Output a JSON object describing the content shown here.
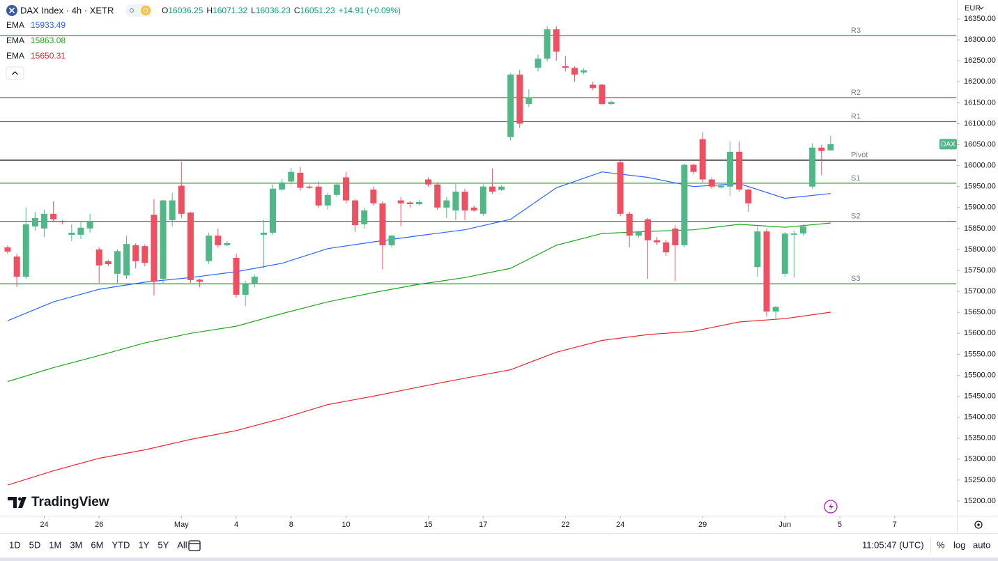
{
  "chart_data": {
    "type": "candlestick",
    "title": "DAX Index · 4h · XETR",
    "badge": "D",
    "ohlc_labels": [
      "O",
      "H",
      "L",
      "C"
    ],
    "change": "+14.91 (+0.09%)",
    "up_color": "#4fb886",
    "down_color": "#ef5061",
    "x": [
      0,
      1,
      2,
      3,
      4,
      5,
      6,
      7,
      8,
      9,
      10,
      11,
      12,
      13,
      14,
      15,
      16,
      17,
      18,
      19,
      20,
      21,
      22,
      23,
      24,
      25,
      26,
      27,
      28,
      29,
      30,
      31,
      32,
      33,
      34,
      35,
      36,
      37,
      38,
      39,
      40,
      41,
      42,
      43,
      44,
      45,
      46,
      47,
      48,
      49,
      50,
      51,
      52,
      53,
      54,
      55,
      56,
      57,
      58,
      59,
      60,
      61,
      62,
      63,
      64,
      65,
      66,
      67,
      68,
      69,
      70,
      71,
      72,
      73,
      74,
      75,
      76,
      77,
      78,
      79,
      80,
      81,
      82,
      83,
      84,
      85,
      86,
      87,
      88,
      89,
      90
    ],
    "open": [
      15805,
      15783,
      15735,
      15855,
      15850,
      15885,
      15868,
      15835,
      15835,
      15850,
      15800,
      15772,
      15742,
      15738,
      15810,
      15808,
      15883,
      15730,
      15870,
      15952,
      15888,
      15728,
      15772,
      15833,
      15810,
      15780,
      15692,
      15717,
      15835,
      15840,
      15943,
      15962,
      15983,
      15950,
      15950,
      15905,
      15930,
      15972,
      15917,
      15860,
      15943,
      15910,
      15810,
      15917,
      15912,
      15908,
      15967,
      15955,
      15900,
      15893,
      15938,
      15900,
      15885,
      15950,
      15942,
      16068,
      16217,
      16147,
      16233,
      16255,
      16325,
      16237,
      16233,
      16222,
      16193,
      16193,
      16147,
      16008,
      15885,
      15833,
      15872,
      15822,
      15817,
      15850,
      15810,
      16002,
      16063,
      15967,
      15948,
      15950,
      16033,
      15943,
      15758,
      15843,
      15652,
      15742,
      15835,
      15838,
      15950,
      16043,
      16036.25
    ],
    "high": [
      15810,
      15790,
      15900,
      15890,
      15895,
      15915,
      15870,
      15860,
      15865,
      15885,
      15805,
      15775,
      15800,
      15833,
      15815,
      15812,
      15920,
      15918,
      15935,
      16010,
      15890,
      15730,
      15840,
      15850,
      15820,
      15790,
      15725,
      15740,
      15870,
      15955,
      15968,
      15995,
      15997,
      15955,
      15962,
      15935,
      15960,
      15985,
      15920,
      15900,
      15950,
      15915,
      15835,
      15925,
      15915,
      15918,
      15972,
      15960,
      15925,
      15958,
      15945,
      15905,
      15955,
      15993,
      15953,
      16220,
      16228,
      16182,
      16265,
      16333,
      16333,
      16262,
      16237,
      16232,
      16200,
      16195,
      16155,
      16012,
      15890,
      15845,
      15875,
      15830,
      15823,
      15858,
      16005,
      16005,
      16080,
      15972,
      15955,
      16058,
      16058,
      15945,
      15855,
      15850,
      15665,
      15842,
      15845,
      15860,
      16053,
      16050,
      16071.32
    ],
    "low": [
      15790,
      15710,
      15730,
      15845,
      15830,
      15865,
      15860,
      15820,
      15825,
      15840,
      15720,
      15760,
      15720,
      15730,
      15755,
      15760,
      15690,
      15720,
      15855,
      15875,
      15720,
      15710,
      15765,
      15805,
      15808,
      15685,
      15665,
      15710,
      15755,
      15835,
      15940,
      15955,
      15940,
      15945,
      15900,
      15895,
      15925,
      15910,
      15842,
      15850,
      15905,
      15752,
      15805,
      15855,
      15900,
      15905,
      15950,
      15895,
      15875,
      15870,
      15870,
      15890,
      15880,
      15933,
      15940,
      16060,
      16090,
      16140,
      16225,
      16248,
      16250,
      16225,
      16200,
      16218,
      16180,
      16145,
      16145,
      15880,
      15805,
      15828,
      15730,
      15810,
      15785,
      15725,
      15805,
      15980,
      15960,
      15945,
      15945,
      15928,
      15938,
      15890,
      15735,
      15640,
      15635,
      15735,
      15733,
      15833,
      15945,
      15977,
      16036.23
    ],
    "close": [
      15795,
      15735,
      15860,
      15875,
      15885,
      15872,
      15865,
      15840,
      15852,
      15868,
      15762,
      15765,
      15796,
      15813,
      15772,
      15768,
      15725,
      15917,
      15917,
      15885,
      15727,
      15723,
      15833,
      15810,
      15815,
      15692,
      15717,
      15735,
      15840,
      15945,
      15960,
      15985,
      15947,
      15947,
      15905,
      15930,
      15955,
      15917,
      15858,
      15893,
      15910,
      15810,
      15833,
      15910,
      15908,
      15913,
      15955,
      15900,
      15917,
      15938,
      15893,
      15893,
      15950,
      15938,
      15950,
      16217,
      16100,
      16163,
      16255,
      16325,
      16272,
      16233,
      16217,
      16227,
      16185,
      16147,
      16152,
      15885,
      15833,
      15842,
      15822,
      15817,
      15793,
      15810,
      16002,
      15985,
      15967,
      15950,
      15952,
      16033,
      15943,
      15910,
      15843,
      15652,
      15663,
      15838,
      15838,
      15855,
      16043,
      16035,
      16051.23
    ],
    "series": [
      {
        "name": "EMA",
        "color": "#2962ff",
        "x": [
          0,
          5,
          10,
          15,
          20,
          25,
          30,
          35,
          40,
          45,
          50,
          55,
          60,
          65,
          70,
          75,
          80,
          85,
          90
        ],
        "values": [
          15630,
          15675,
          15705,
          15722,
          15733,
          15747,
          15767,
          15802,
          15818,
          15833,
          15847,
          15872,
          15947,
          15985,
          15972,
          15950,
          15957,
          15922,
          15933.49
        ]
      },
      {
        "name": "EMA",
        "color": "#1fa51f",
        "x": [
          0,
          5,
          10,
          15,
          20,
          25,
          30,
          35,
          40,
          45,
          50,
          55,
          60,
          65,
          70,
          75,
          80,
          85,
          90
        ],
        "values": [
          15485,
          15518,
          15547,
          15577,
          15600,
          15617,
          15647,
          15675,
          15697,
          15717,
          15733,
          15755,
          15810,
          15838,
          15843,
          15847,
          15860,
          15853,
          15863.08
        ]
      },
      {
        "name": "EMA",
        "color": "#e8262f",
        "x": [
          0,
          5,
          10,
          15,
          20,
          25,
          30,
          35,
          40,
          45,
          50,
          55,
          60,
          65,
          70,
          75,
          80,
          85,
          90
        ],
        "values": [
          15238,
          15272,
          15302,
          15322,
          15347,
          15368,
          15397,
          15430,
          15450,
          15472,
          15493,
          15513,
          15555,
          15583,
          15597,
          15605,
          15627,
          15635,
          15650.31
        ]
      }
    ],
    "levels": [
      {
        "name": "R3",
        "value": 16310,
        "color": "#e0353f"
      },
      {
        "name": "R2",
        "value": 16162,
        "color": "#e0353f"
      },
      {
        "name": "R1",
        "value": 16105,
        "color": "#e0353f"
      },
      {
        "name": "Pivot",
        "value": 16013,
        "color": "#000000"
      },
      {
        "name": "S1",
        "value": 15958,
        "color": "#22a822"
      },
      {
        "name": "S2",
        "value": 15867,
        "color": "#22a822"
      },
      {
        "name": "S3",
        "value": 15718,
        "color": "#22a822"
      }
    ],
    "price_tag": "DAX",
    "currency": "EUR",
    "ylim": [
      15165,
      16395
    ],
    "yticks": [
      {
        "value": 15200,
        "label": "15200.00"
      },
      {
        "value": 15250,
        "label": "15250.00"
      },
      {
        "value": 15300,
        "label": "15300.00"
      },
      {
        "value": 15350,
        "label": "15350.00"
      },
      {
        "value": 15400,
        "label": "15400.00"
      },
      {
        "value": 15450,
        "label": "15450.00"
      },
      {
        "value": 15500,
        "label": "15500.00"
      },
      {
        "value": 15550,
        "label": "15550.00"
      },
      {
        "value": 15600,
        "label": "15600.00"
      },
      {
        "value": 15650,
        "label": "15650.00"
      },
      {
        "value": 15700,
        "label": "15700.00"
      },
      {
        "value": 15750,
        "label": "15750.00"
      },
      {
        "value": 15800,
        "label": "15800.00"
      },
      {
        "value": 15850,
        "label": "15850.00"
      },
      {
        "value": 15900,
        "label": "15900.00"
      },
      {
        "value": 15950,
        "label": "15950.00"
      },
      {
        "value": 16000,
        "label": "16000.00"
      },
      {
        "value": 16050,
        "label": "16050.00"
      },
      {
        "value": 16100,
        "label": "16100.00"
      },
      {
        "value": 16150,
        "label": "16150.00"
      },
      {
        "value": 16200,
        "label": "16200.00"
      },
      {
        "value": 16250,
        "label": "16250.00"
      },
      {
        "value": 16300,
        "label": "16300.00"
      },
      {
        "value": 16350,
        "label": "16350.00"
      }
    ],
    "xlim": [
      -0.84,
      103.73
    ],
    "xticks": [
      {
        "value": 4,
        "label": "24"
      },
      {
        "value": 10,
        "label": "26"
      },
      {
        "value": 19,
        "label": "May"
      },
      {
        "value": 25,
        "label": "4"
      },
      {
        "value": 31,
        "label": "8"
      },
      {
        "value": 37,
        "label": "10"
      },
      {
        "value": 46,
        "label": "15"
      },
      {
        "value": 52,
        "label": "17"
      },
      {
        "value": 61,
        "label": "22"
      },
      {
        "value": 67,
        "label": "24"
      },
      {
        "value": 76,
        "label": "29"
      },
      {
        "value": 85,
        "label": "Jun"
      },
      {
        "value": 91,
        "label": "5"
      },
      {
        "value": 97,
        "label": "7"
      }
    ],
    "grid": false
  },
  "ui": {
    "brand": "TradingView",
    "ranges": [
      "1D",
      "5D",
      "1M",
      "3M",
      "6M",
      "YTD",
      "1Y",
      "5Y",
      "All"
    ],
    "clock": "11:05:47 (UTC)",
    "percent": "%",
    "log": "log",
    "auto": "auto"
  }
}
